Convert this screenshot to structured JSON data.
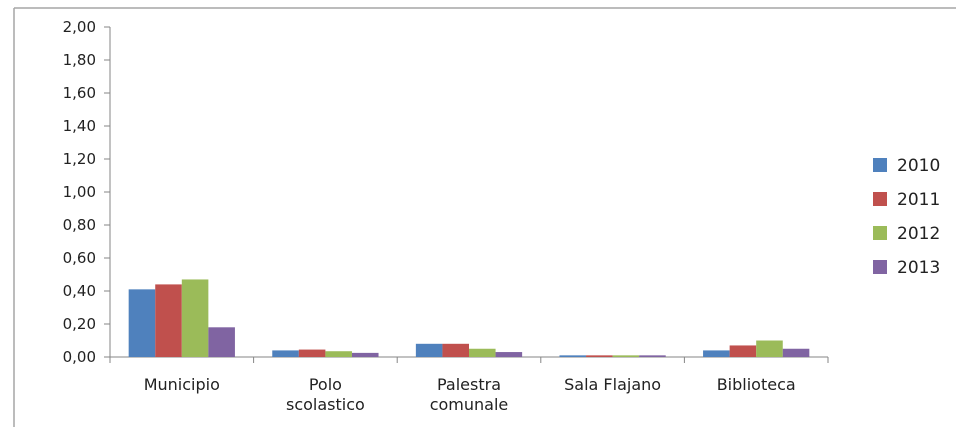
{
  "chart_data": {
    "type": "bar",
    "title": "",
    "xlabel": "",
    "ylabel": "",
    "categories": [
      [
        "Municipio"
      ],
      [
        "Polo",
        "scolastico"
      ],
      [
        "Palestra",
        "comunale"
      ],
      [
        "Sala Flajano"
      ],
      [
        "Biblioteca"
      ]
    ],
    "series": [
      {
        "name": "2010",
        "color": "#4f81bd",
        "values": [
          0.41,
          0.04,
          0.08,
          0.01,
          0.04
        ]
      },
      {
        "name": "2011",
        "color": "#c0504d",
        "values": [
          0.44,
          0.045,
          0.08,
          0.01,
          0.07
        ]
      },
      {
        "name": "2012",
        "color": "#9bbb59",
        "values": [
          0.47,
          0.035,
          0.05,
          0.01,
          0.1
        ]
      },
      {
        "name": "2013",
        "color": "#8064a2",
        "values": [
          0.18,
          0.025,
          0.03,
          0.01,
          0.05
        ]
      }
    ],
    "ylim": [
      0,
      2.0
    ],
    "yticks": [
      "0,00",
      "0,20",
      "0,40",
      "0,60",
      "0,80",
      "1,00",
      "1,20",
      "1,40",
      "1,60",
      "1,80",
      "2,00"
    ],
    "grid": false,
    "legend_position": "right"
  }
}
